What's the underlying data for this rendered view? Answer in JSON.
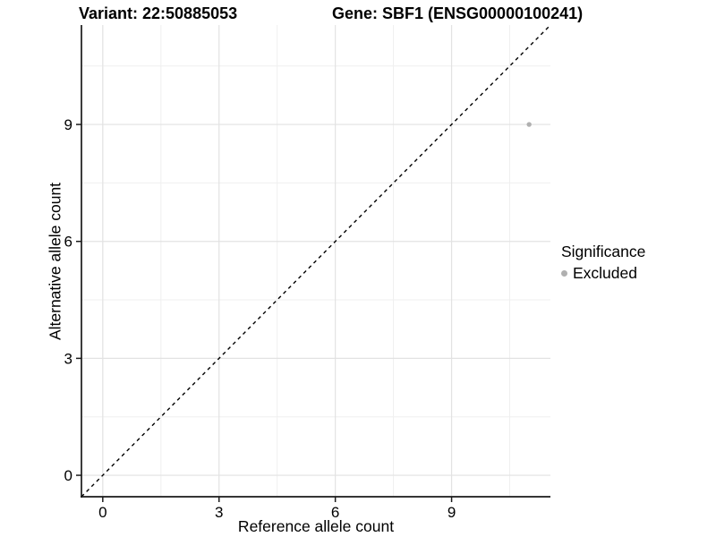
{
  "figure": {
    "title_left": "Variant: 22:50885053",
    "title_right": "Gene: SBF1 (ENSG00000100241)",
    "legend": {
      "title": "Significance",
      "items": [
        {
          "label": "Excluded",
          "color": "#b0b0b0"
        }
      ]
    }
  },
  "chart_data": {
    "type": "scatter",
    "title": "Variant: 22:50885053  /  Gene: SBF1 (ENSG00000100241)",
    "xlabel": "Reference allele count",
    "ylabel": "Alternative allele count",
    "x_ticks": [
      0,
      3,
      6,
      9
    ],
    "y_ticks": [
      0,
      3,
      6,
      9
    ],
    "x_minor_ticks": [
      1.5,
      4.5,
      7.5,
      10.5
    ],
    "y_minor_ticks": [
      1.5,
      4.5,
      7.5,
      10.5
    ],
    "xlim": [
      -0.55,
      11.55
    ],
    "ylim": [
      -0.55,
      11.55
    ],
    "grid": true,
    "legend_position": "right",
    "legend_title": "Significance",
    "series": [
      {
        "name": "Excluded",
        "color": "#b0b0b0",
        "points": [
          {
            "x": 11,
            "y": 9
          }
        ]
      }
    ],
    "reference_line": {
      "type": "identity",
      "equation": "y = x",
      "style": "dashed",
      "color": "#000000"
    },
    "colors": {
      "background": "#ffffff",
      "axis": "#1a1a1a",
      "grid_major": "#e2e2e2",
      "grid_minor": "#efefef",
      "point": "#b0b0b0",
      "text": "#000000"
    }
  }
}
